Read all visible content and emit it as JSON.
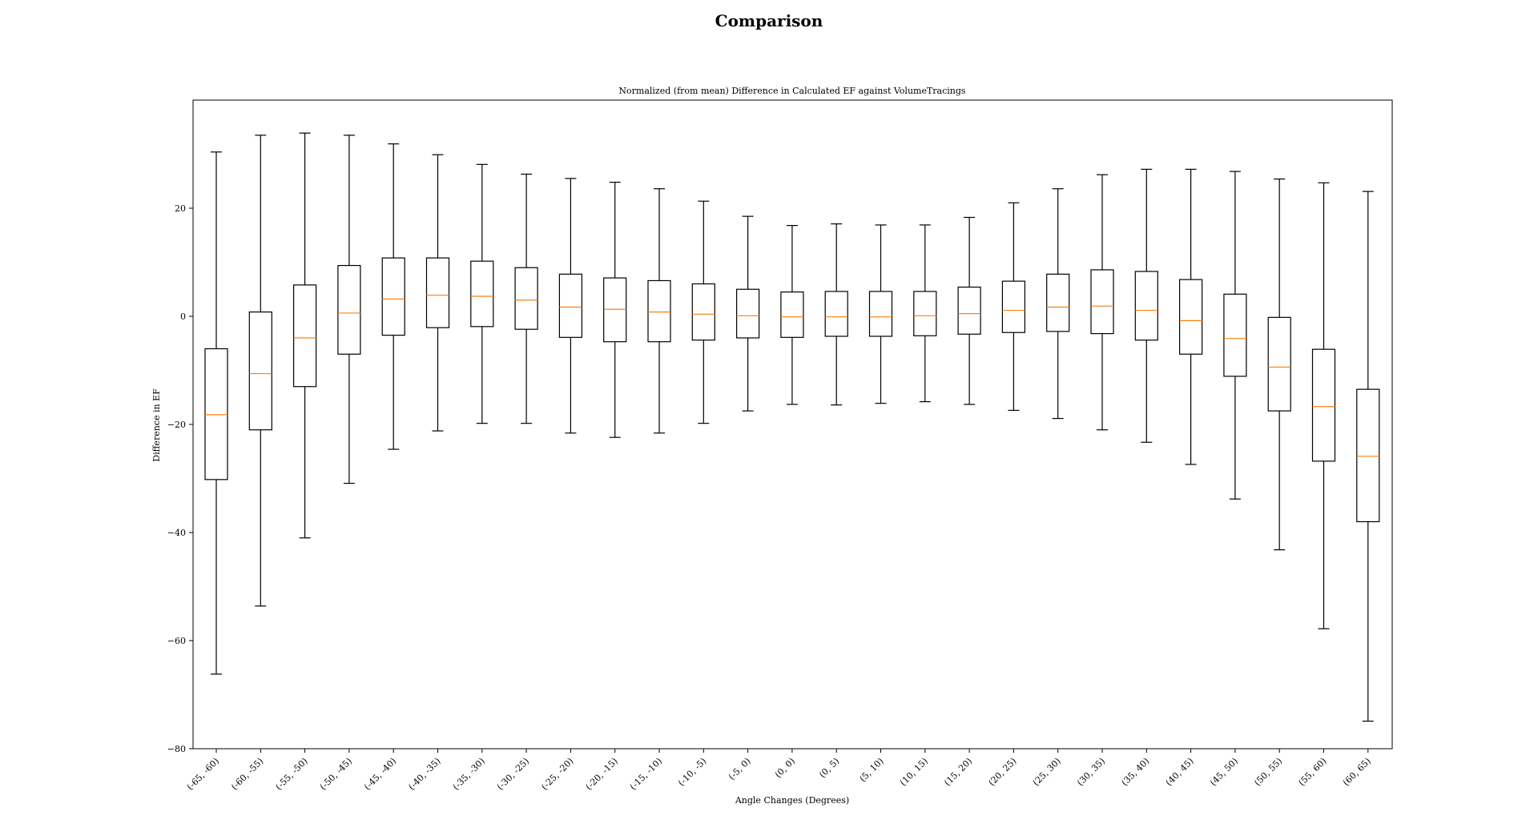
{
  "figure_title": "Comparison",
  "chart_data": {
    "type": "box",
    "title": "Normalized (from mean) Difference in Calculated EF against VolumeTracings",
    "xlabel": "Angle Changes (Degrees)",
    "ylabel": "Difference in EF",
    "ylim": [
      -80,
      40
    ],
    "yticks": [
      -80,
      -60,
      -40,
      -20,
      0,
      20
    ],
    "grid": false,
    "colors": {
      "box": "#000000",
      "median": "#ff7f0e"
    },
    "categories": [
      "(-65, -60)",
      "(-60, -55)",
      "(-55, -50)",
      "(-50, -45)",
      "(-45, -40)",
      "(-40, -35)",
      "(-35, -30)",
      "(-30, -25)",
      "(-25, -20)",
      "(-20, -15)",
      "(-15, -10)",
      "(-10, -5)",
      "(-5, 0)",
      "(0, 0)",
      "(0, 5)",
      "(5, 10)",
      "(10, 15)",
      "(15, 20)",
      "(20, 25)",
      "(25, 30)",
      "(30, 35)",
      "(35, 40)",
      "(40, 45)",
      "(45, 50)",
      "(50, 55)",
      "(55, 60)",
      "(60, 65)"
    ],
    "boxes": [
      {
        "whisker_low": -66.2,
        "q1": -30.2,
        "median": -18.2,
        "q3": -6.0,
        "whisker_high": 30.4
      },
      {
        "whisker_low": -53.6,
        "q1": -21.0,
        "median": -10.6,
        "q3": 0.8,
        "whisker_high": 33.5
      },
      {
        "whisker_low": -41.0,
        "q1": -13.0,
        "median": -4.0,
        "q3": 5.8,
        "whisker_high": 33.9
      },
      {
        "whisker_low": -30.9,
        "q1": -7.0,
        "median": 0.6,
        "q3": 9.4,
        "whisker_high": 33.5
      },
      {
        "whisker_low": -24.6,
        "q1": -3.5,
        "median": 3.2,
        "q3": 10.8,
        "whisker_high": 31.9
      },
      {
        "whisker_low": -21.2,
        "q1": -2.1,
        "median": 3.9,
        "q3": 10.8,
        "whisker_high": 29.9
      },
      {
        "whisker_low": -19.8,
        "q1": -1.9,
        "median": 3.7,
        "q3": 10.2,
        "whisker_high": 28.1
      },
      {
        "whisker_low": -19.8,
        "q1": -2.4,
        "median": 3.0,
        "q3": 9.0,
        "whisker_high": 26.3
      },
      {
        "whisker_low": -21.6,
        "q1": -3.9,
        "median": 1.7,
        "q3": 7.8,
        "whisker_high": 25.5
      },
      {
        "whisker_low": -22.4,
        "q1": -4.7,
        "median": 1.3,
        "q3": 7.1,
        "whisker_high": 24.8
      },
      {
        "whisker_low": -21.6,
        "q1": -4.7,
        "median": 0.8,
        "q3": 6.6,
        "whisker_high": 23.6
      },
      {
        "whisker_low": -19.8,
        "q1": -4.4,
        "median": 0.4,
        "q3": 6.0,
        "whisker_high": 21.3
      },
      {
        "whisker_low": -17.5,
        "q1": -4.0,
        "median": 0.1,
        "q3": 5.0,
        "whisker_high": 18.5
      },
      {
        "whisker_low": -16.3,
        "q1": -3.9,
        "median": -0.1,
        "q3": 4.5,
        "whisker_high": 16.8
      },
      {
        "whisker_low": -16.4,
        "q1": -3.7,
        "median": -0.1,
        "q3": 4.6,
        "whisker_high": 17.1
      },
      {
        "whisker_low": -16.1,
        "q1": -3.7,
        "median": -0.1,
        "q3": 4.6,
        "whisker_high": 16.9
      },
      {
        "whisker_low": -15.8,
        "q1": -3.6,
        "median": 0.1,
        "q3": 4.6,
        "whisker_high": 16.9
      },
      {
        "whisker_low": -16.3,
        "q1": -3.3,
        "median": 0.5,
        "q3": 5.4,
        "whisker_high": 18.3
      },
      {
        "whisker_low": -17.4,
        "q1": -3.0,
        "median": 1.1,
        "q3": 6.5,
        "whisker_high": 21.0
      },
      {
        "whisker_low": -18.9,
        "q1": -2.8,
        "median": 1.7,
        "q3": 7.8,
        "whisker_high": 23.6
      },
      {
        "whisker_low": -21.0,
        "q1": -3.2,
        "median": 1.9,
        "q3": 8.6,
        "whisker_high": 26.2
      },
      {
        "whisker_low": -23.3,
        "q1": -4.4,
        "median": 1.1,
        "q3": 8.3,
        "whisker_high": 27.2
      },
      {
        "whisker_low": -27.4,
        "q1": -7.0,
        "median": -0.8,
        "q3": 6.8,
        "whisker_high": 27.2
      },
      {
        "whisker_low": -33.8,
        "q1": -11.1,
        "median": -4.1,
        "q3": 4.1,
        "whisker_high": 26.8
      },
      {
        "whisker_low": -43.2,
        "q1": -17.5,
        "median": -9.4,
        "q3": -0.2,
        "whisker_high": 25.4
      },
      {
        "whisker_low": -57.8,
        "q1": -26.8,
        "median": -16.7,
        "q3": -6.1,
        "whisker_high": 24.7
      },
      {
        "whisker_low": -74.9,
        "q1": -38.0,
        "median": -25.9,
        "q3": -13.5,
        "whisker_high": 23.1
      }
    ]
  }
}
